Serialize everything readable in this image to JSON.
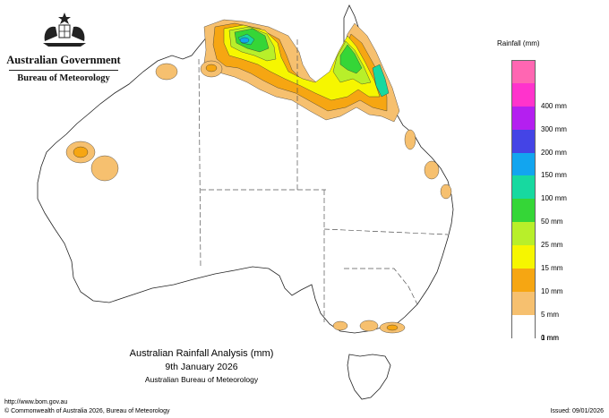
{
  "header": {
    "government": "Australian Government",
    "bureau": "Bureau of Meteorology"
  },
  "legend": {
    "title": "Rainfall (mm)",
    "bands": [
      {
        "label": "",
        "color": "#ff66b2"
      },
      {
        "label": "400 mm",
        "color": "#ff33cc"
      },
      {
        "label": "300 mm",
        "color": "#b41ff0"
      },
      {
        "label": "200 mm",
        "color": "#4444e6"
      },
      {
        "label": "150 mm",
        "color": "#12a5ef"
      },
      {
        "label": "100 mm",
        "color": "#17d9a0"
      },
      {
        "label": "50 mm",
        "color": "#35d637"
      },
      {
        "label": "25 mm",
        "color": "#b8ef2a"
      },
      {
        "label": "15 mm",
        "color": "#f6f600"
      },
      {
        "label": "10 mm",
        "color": "#f6a612"
      },
      {
        "label": "5 mm",
        "color": "#f6c06f"
      },
      {
        "label": "1 mm",
        "color": "#ffffff"
      },
      {
        "label": "0 mm",
        "color": ""
      }
    ]
  },
  "caption": {
    "title": "Australian Rainfall Analysis (mm)",
    "date": "9th January 2026",
    "organisation": "Australian Bureau of Meteorology"
  },
  "footer": {
    "url": "http://www.bom.gov.au",
    "copyright": "© Commonwealth of Australia 2026, Bureau of Meteorology",
    "issued": "Issued: 09/01/2026"
  },
  "colors": {
    "background": "#ffffff",
    "coastline": "#222222",
    "state_border": "#555555",
    "rain_1mm": "#f6c06f",
    "rain_5mm": "#f6a612",
    "rain_10mm": "#f6f600",
    "rain_15mm": "#b8ef2a",
    "rain_25mm": "#35d637",
    "rain_50mm": "#17d9a0",
    "rain_100mm": "#12a5ef"
  }
}
